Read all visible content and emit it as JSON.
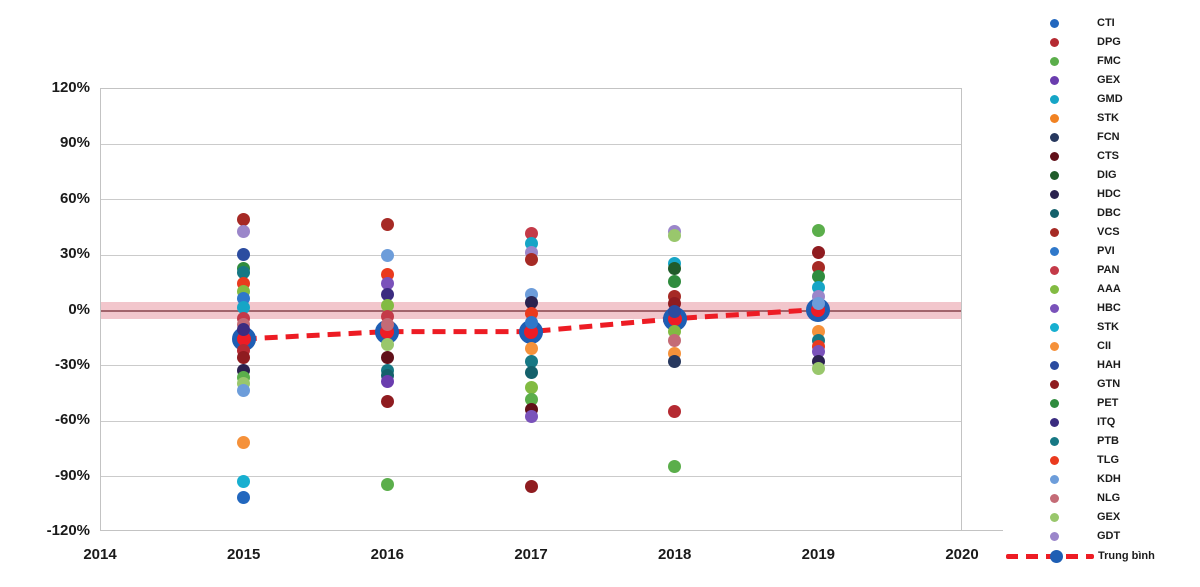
{
  "chart_data": {
    "type": "scatter",
    "title": "",
    "xlabel": "",
    "ylabel": "",
    "grid": true,
    "legend_position": "right",
    "xlim": [
      2014,
      2020
    ],
    "ylim": [
      -120,
      120
    ],
    "x_ticks": [
      "2014",
      "2015",
      "2016",
      "2017",
      "2018",
      "2019",
      "2020"
    ],
    "y_ticks": [
      "120%",
      "90%",
      "60%",
      "30%",
      "0%",
      "-30%",
      "-60%",
      "-90%",
      "-120%"
    ],
    "y_tick_values": [
      120,
      90,
      60,
      30,
      0,
      -30,
      -60,
      -90,
      -120
    ],
    "zero_band": {
      "center_pct": 0,
      "half_width_pct": 4.5,
      "band_color": "#f2c6cc",
      "line_color": "#a2636b"
    },
    "series_legend": [
      {
        "label": "CTI",
        "color": "#2267be"
      },
      {
        "label": "DPG",
        "color": "#b52a32"
      },
      {
        "label": "FMC",
        "color": "#5bae4b"
      },
      {
        "label": "GEX",
        "color": "#6a3dae"
      },
      {
        "label": "GMD",
        "color": "#16a5c6"
      },
      {
        "label": "STK",
        "color": "#f18222"
      },
      {
        "label": "FCN",
        "color": "#27385e"
      },
      {
        "label": "CTS",
        "color": "#611019"
      },
      {
        "label": "DIG",
        "color": "#205c2a"
      },
      {
        "label": "HDC",
        "color": "#2b224f"
      },
      {
        "label": "DBC",
        "color": "#14616b"
      },
      {
        "label": "VCS",
        "color": "#a62a25"
      },
      {
        "label": "PVI",
        "color": "#2f78ca"
      },
      {
        "label": "PAN",
        "color": "#c43a48"
      },
      {
        "label": "AAA",
        "color": "#82bb42"
      },
      {
        "label": "HBC",
        "color": "#7a52ba"
      },
      {
        "label": "STK",
        "color": "#17afd0"
      },
      {
        "label": "CII",
        "color": "#f5913a"
      },
      {
        "label": "HAH",
        "color": "#2c4ca0"
      },
      {
        "label": "GTN",
        "color": "#8f1c20"
      },
      {
        "label": "PET",
        "color": "#2f8c3e"
      },
      {
        "label": "ITQ",
        "color": "#3b2c80"
      },
      {
        "label": "PTB",
        "color": "#177884"
      },
      {
        "label": "TLG",
        "color": "#ea3a1e"
      },
      {
        "label": "KDH",
        "color": "#6d9dda"
      },
      {
        "label": "NLG",
        "color": "#c46b76"
      },
      {
        "label": "GEX",
        "color": "#99c76c"
      },
      {
        "label": "GDT",
        "color": "#9b86ca"
      }
    ],
    "average_series": {
      "label": "Trung bình",
      "line_color": "#ed1c24",
      "marker_fill": "#ee1c25",
      "marker_ring": "#1e5eb4",
      "x": [
        2015,
        2016,
        2017,
        2018,
        2019
      ],
      "values_pct": [
        -16,
        -12,
        -12,
        -5,
        0
      ]
    },
    "points_by_year": {
      "2015": [
        {
          "pct": 49,
          "color": "#a62a25"
        },
        {
          "pct": 42,
          "color": "#9b86ca"
        },
        {
          "pct": 30,
          "color": "#2c4ca0"
        },
        {
          "pct": 22,
          "color": "#2f8c3e"
        },
        {
          "pct": 20,
          "color": "#177884"
        },
        {
          "pct": 14,
          "color": "#ea3a1e"
        },
        {
          "pct": 10,
          "color": "#82bb42"
        },
        {
          "pct": 6,
          "color": "#2f78ca"
        },
        {
          "pct": 1,
          "color": "#16a5c6"
        },
        {
          "pct": -5,
          "color": "#c43a48"
        },
        {
          "pct": -8,
          "color": "#c46b76"
        },
        {
          "pct": -11,
          "color": "#3b2c80"
        },
        {
          "pct": -22,
          "color": "#b52a32"
        },
        {
          "pct": -26,
          "color": "#8f1c20"
        },
        {
          "pct": -33,
          "color": "#2b224f"
        },
        {
          "pct": -37,
          "color": "#5bae4b"
        },
        {
          "pct": -40,
          "color": "#99c76c"
        },
        {
          "pct": -44,
          "color": "#6d9dda"
        },
        {
          "pct": -72,
          "color": "#f5913a"
        },
        {
          "pct": -93,
          "color": "#17afd0"
        },
        {
          "pct": -102,
          "color": "#2267be"
        }
      ],
      "2016": [
        {
          "pct": 46,
          "color": "#a62a25"
        },
        {
          "pct": 29,
          "color": "#6d9dda"
        },
        {
          "pct": 19,
          "color": "#ea3a1e"
        },
        {
          "pct": 14,
          "color": "#7a52ba"
        },
        {
          "pct": 8,
          "color": "#3b2c80"
        },
        {
          "pct": 2,
          "color": "#82bb42"
        },
        {
          "pct": -4,
          "color": "#c43a48"
        },
        {
          "pct": -8,
          "color": "#c46b76"
        },
        {
          "pct": -19,
          "color": "#99c76c"
        },
        {
          "pct": -26,
          "color": "#611019"
        },
        {
          "pct": -33,
          "color": "#177884"
        },
        {
          "pct": -36,
          "color": "#14616b"
        },
        {
          "pct": -39,
          "color": "#6a3dae"
        },
        {
          "pct": -50,
          "color": "#8f1c20"
        },
        {
          "pct": -95,
          "color": "#5bae4b"
        }
      ],
      "2017": [
        {
          "pct": 41,
          "color": "#c43a48"
        },
        {
          "pct": 36,
          "color": "#16a5c6"
        },
        {
          "pct": 31,
          "color": "#9b86ca"
        },
        {
          "pct": 27,
          "color": "#a62a25"
        },
        {
          "pct": 8,
          "color": "#6d9dda"
        },
        {
          "pct": 4,
          "color": "#2b224f"
        },
        {
          "pct": -2,
          "color": "#ea3a1e"
        },
        {
          "pct": -7,
          "color": "#2f78ca"
        },
        {
          "pct": -21,
          "color": "#f5913a"
        },
        {
          "pct": -28,
          "color": "#177884"
        },
        {
          "pct": -34,
          "color": "#14616b"
        },
        {
          "pct": -42,
          "color": "#82bb42"
        },
        {
          "pct": -49,
          "color": "#5bae4b"
        },
        {
          "pct": -54,
          "color": "#611019"
        },
        {
          "pct": -58,
          "color": "#7a52ba"
        },
        {
          "pct": -96,
          "color": "#8f1c20"
        }
      ],
      "2018": [
        {
          "pct": 42,
          "color": "#9b86ca"
        },
        {
          "pct": 40,
          "color": "#99c76c"
        },
        {
          "pct": 25,
          "color": "#16a5c6"
        },
        {
          "pct": 22,
          "color": "#205c2a"
        },
        {
          "pct": 15,
          "color": "#2f8c3e"
        },
        {
          "pct": 7,
          "color": "#a62a25"
        },
        {
          "pct": 3,
          "color": "#8f1c20"
        },
        {
          "pct": -1,
          "color": "#2c4ca0"
        },
        {
          "pct": -12,
          "color": "#82bb42"
        },
        {
          "pct": -17,
          "color": "#c46b76"
        },
        {
          "pct": -24,
          "color": "#f5913a"
        },
        {
          "pct": -28,
          "color": "#27385e"
        },
        {
          "pct": -55,
          "color": "#b52a32"
        },
        {
          "pct": -85,
          "color": "#5bae4b"
        }
      ],
      "2019": [
        {
          "pct": 43,
          "color": "#5bae4b"
        },
        {
          "pct": 31,
          "color": "#8f1c20"
        },
        {
          "pct": 23,
          "color": "#a62a25"
        },
        {
          "pct": 18,
          "color": "#2f8c3e"
        },
        {
          "pct": 12,
          "color": "#16a5c6"
        },
        {
          "pct": 7,
          "color": "#9b86ca"
        },
        {
          "pct": 3,
          "color": "#6d9dda"
        },
        {
          "pct": -12,
          "color": "#f5913a"
        },
        {
          "pct": -17,
          "color": "#177884"
        },
        {
          "pct": -20,
          "color": "#ea3a1e"
        },
        {
          "pct": -23,
          "color": "#7a52ba"
        },
        {
          "pct": -28,
          "color": "#2b224f"
        },
        {
          "pct": -32,
          "color": "#99c76c"
        }
      ]
    }
  }
}
